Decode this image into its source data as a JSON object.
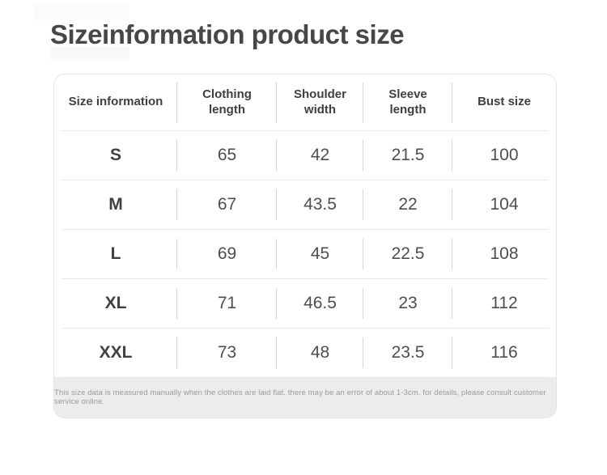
{
  "page": {
    "title": "Sizeinformation product size"
  },
  "colors": {
    "title_text": "#474747",
    "header_text": "#3f3f3f",
    "value_text": "#4e4e4e",
    "card_border": "#e4e4e4",
    "row_divider": "#e9e9e9",
    "column_divider": "#d6d6d6",
    "footer_background": "#ececec",
    "footer_text": "#9a9a9a"
  },
  "table": {
    "headers": [
      "Size information",
      "Clothing length",
      "Shoulder width",
      "Sleeve length",
      "Bust size"
    ],
    "rows": [
      [
        "S",
        "65",
        "42",
        "21.5",
        "100"
      ],
      [
        "M",
        "67",
        "43.5",
        "22",
        "104"
      ],
      [
        "L",
        "69",
        "45",
        "22.5",
        "108"
      ],
      [
        "XL",
        "71",
        "46.5",
        "23",
        "112"
      ],
      [
        "XXL",
        "73",
        "48",
        "23.5",
        "116"
      ]
    ],
    "note": "This size data is measured manually when the clothes are laid flat. there may be an error of about 1-3cm. for details, please consult customer service online."
  }
}
